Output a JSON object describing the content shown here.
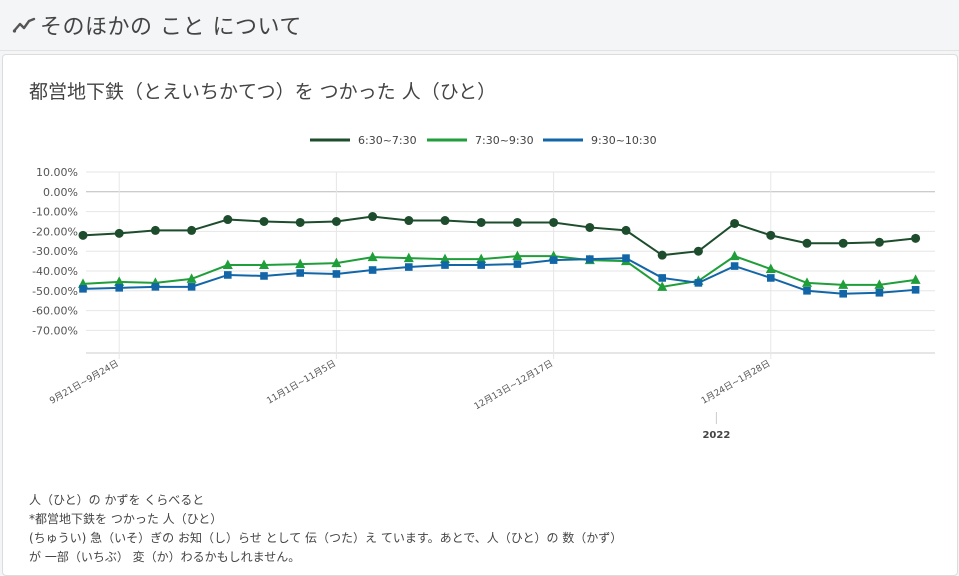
{
  "header": {
    "title": "そのほかの こと について",
    "icon": "line-chart-icon"
  },
  "card": {
    "title": "都営地下鉄（とえいちかてつ）を つかった 人（ひと）",
    "notes": [
      "人（ひと）の かずを くらべると",
      "*都営地下鉄を つかった 人（ひと）",
      "(ちゅうい) 急（いそ）ぎの お知（し）らせ として 伝（つた）え ています。あとで、人（ひと）の 数（かず）",
      "が 一部（いちぶ） 変（か）わるかもしれません。"
    ]
  },
  "chart_data": {
    "type": "line",
    "title": "",
    "xlabel": "",
    "ylabel": "",
    "ylim": [
      -70,
      10
    ],
    "y_ticks": [
      "10.00%",
      "0.00%",
      "-10.00%",
      "-20.00%",
      "-30.00%",
      "-40.00%",
      "-50.00%",
      "-60.00%",
      "-70.00%"
    ],
    "x_tick_labels": [
      {
        "label": "9月21日~9月24日",
        "index": 1
      },
      {
        "label": "11月1日~11月5日",
        "index": 7
      },
      {
        "label": "12月13日~12月17日",
        "index": 13
      },
      {
        "label": "1月24日~1月28日",
        "index": 19
      }
    ],
    "year_label": {
      "label": "2022",
      "index": 17
    },
    "legend_position": "top-center",
    "grid": true,
    "series": [
      {
        "name": "6:30~7:30",
        "color": "#1d4d2c",
        "marker": "circle",
        "values": [
          -22,
          -21,
          -19.5,
          -19.5,
          -14,
          -15,
          -15.5,
          -15,
          -12.5,
          -14.5,
          -14.5,
          -15.5,
          -15.5,
          -15.5,
          -18,
          -19.5,
          -32,
          -30,
          -16,
          -22,
          -26,
          -26,
          -25.5,
          -23.5
        ]
      },
      {
        "name": "7:30~9:30",
        "color": "#1f9e3a",
        "marker": "triangle",
        "values": [
          -46.5,
          -45.5,
          -46,
          -44,
          -37,
          -37,
          -36.5,
          -36,
          -33,
          -33.5,
          -34,
          -34,
          -32.5,
          -32.5,
          -34.5,
          -35,
          -48,
          -45,
          -32.5,
          -39,
          -46,
          -47,
          -47,
          -44.5
        ]
      },
      {
        "name": "9:30~10:30",
        "color": "#1266a7",
        "marker": "square",
        "values": [
          -49,
          -48.5,
          -48,
          -48,
          -42,
          -42.5,
          -41,
          -41.5,
          -39.5,
          -38,
          -37,
          -37,
          -36.5,
          -34.5,
          -34,
          -33.5,
          -43.5,
          -46,
          -37.5,
          -43.5,
          -50,
          -51.5,
          -51,
          -49.5
        ]
      }
    ]
  }
}
